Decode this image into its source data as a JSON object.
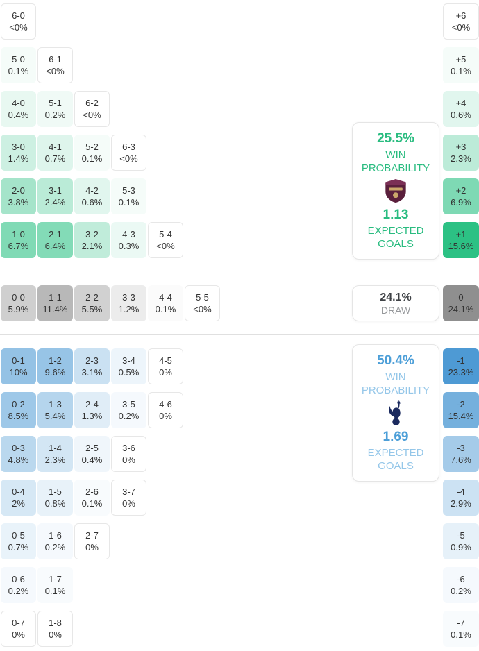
{
  "theme": {
    "home_accent": "#2abc80",
    "away_accent": "#4d9fd8",
    "away_accent_light": "#95c7e9",
    "draw_number_color": "#3f4246",
    "draw_label_color": "#96989b",
    "home_tile_base": "#2cc184",
    "draw_tile_base": "#8f8f8f",
    "away_tile_base": "#4e9ad4",
    "tile_text": "#333333",
    "zero_tile_border": "#e7e7e7",
    "divider": "#e0e0e0",
    "burnley_claret": "#5a1f3c",
    "burnley_claret_light": "#7b2f55",
    "burnley_gold": "#cba76b",
    "spurs_navy": "#1b2a5e"
  },
  "chart_data": {
    "type": "heatmap",
    "description": "Correct score probability matrix with goal-difference totals",
    "cell_format": [
      "score",
      "probability"
    ],
    "sections": {
      "home_win": {
        "probability": "25.5%",
        "probability_label": "WIN PROBABILITY",
        "expected_goals": "1.13",
        "expected_goals_label": "EXPECTED GOALS",
        "team_icon": "burnley-crest",
        "rows": [
          [
            [
              "6-0",
              "<0%"
            ]
          ],
          [
            [
              "5-0",
              "0.1%"
            ],
            [
              "6-1",
              "<0%"
            ]
          ],
          [
            [
              "4-0",
              "0.4%"
            ],
            [
              "5-1",
              "0.2%"
            ],
            [
              "6-2",
              "<0%"
            ]
          ],
          [
            [
              "3-0",
              "1.4%"
            ],
            [
              "4-1",
              "0.7%"
            ],
            [
              "5-2",
              "0.1%"
            ],
            [
              "6-3",
              "<0%"
            ]
          ],
          [
            [
              "2-0",
              "3.8%"
            ],
            [
              "3-1",
              "2.4%"
            ],
            [
              "4-2",
              "0.6%"
            ],
            [
              "5-3",
              "0.1%"
            ]
          ],
          [
            [
              "1-0",
              "6.7%"
            ],
            [
              "2-1",
              "6.4%"
            ],
            [
              "3-2",
              "2.1%"
            ],
            [
              "4-3",
              "0.3%"
            ],
            [
              "5-4",
              "<0%"
            ]
          ]
        ],
        "goal_diff": [
          [
            "+6",
            "<0%"
          ],
          [
            "+5",
            "0.1%"
          ],
          [
            "+4",
            "0.6%"
          ],
          [
            "+3",
            "2.3%"
          ],
          [
            "+2",
            "6.9%"
          ],
          [
            "+1",
            "15.6%"
          ]
        ]
      },
      "draw": {
        "probability": "24.1%",
        "label": "DRAW",
        "cells": [
          [
            "0-0",
            "5.9%"
          ],
          [
            "1-1",
            "11.4%"
          ],
          [
            "2-2",
            "5.5%"
          ],
          [
            "3-3",
            "1.2%"
          ],
          [
            "4-4",
            "0.1%"
          ],
          [
            "5-5",
            "<0%"
          ]
        ],
        "goal_diff": [
          [
            "0",
            "24.1%"
          ]
        ]
      },
      "away_win": {
        "probability": "50.4%",
        "probability_label": "WIN PROBABILITY",
        "expected_goals": "1.69",
        "expected_goals_label": "EXPECTED GOALS",
        "team_icon": "tottenham-crest",
        "rows": [
          [
            [
              "0-1",
              "10%"
            ],
            [
              "1-2",
              "9.6%"
            ],
            [
              "2-3",
              "3.1%"
            ],
            [
              "3-4",
              "0.5%"
            ],
            [
              "4-5",
              "0%"
            ]
          ],
          [
            [
              "0-2",
              "8.5%"
            ],
            [
              "1-3",
              "5.4%"
            ],
            [
              "2-4",
              "1.3%"
            ],
            [
              "3-5",
              "0.2%"
            ],
            [
              "4-6",
              "0%"
            ]
          ],
          [
            [
              "0-3",
              "4.8%"
            ],
            [
              "1-4",
              "2.3%"
            ],
            [
              "2-5",
              "0.4%"
            ],
            [
              "3-6",
              "0%"
            ]
          ],
          [
            [
              "0-4",
              "2%"
            ],
            [
              "1-5",
              "0.8%"
            ],
            [
              "2-6",
              "0.1%"
            ],
            [
              "3-7",
              "0%"
            ]
          ],
          [
            [
              "0-5",
              "0.7%"
            ],
            [
              "1-6",
              "0.2%"
            ],
            [
              "2-7",
              "0%"
            ]
          ],
          [
            [
              "0-6",
              "0.2%"
            ],
            [
              "1-7",
              "0.1%"
            ]
          ],
          [
            [
              "0-7",
              "0%"
            ],
            [
              "1-8",
              "0%"
            ]
          ]
        ],
        "goal_diff": [
          [
            "-1",
            "23.3%"
          ],
          [
            "-2",
            "15.4%"
          ],
          [
            "-3",
            "7.6%"
          ],
          [
            "-4",
            "2.9%"
          ],
          [
            "-5",
            "0.9%"
          ],
          [
            "-6",
            "0.2%"
          ],
          [
            "-7",
            "0.1%"
          ]
        ]
      }
    }
  }
}
